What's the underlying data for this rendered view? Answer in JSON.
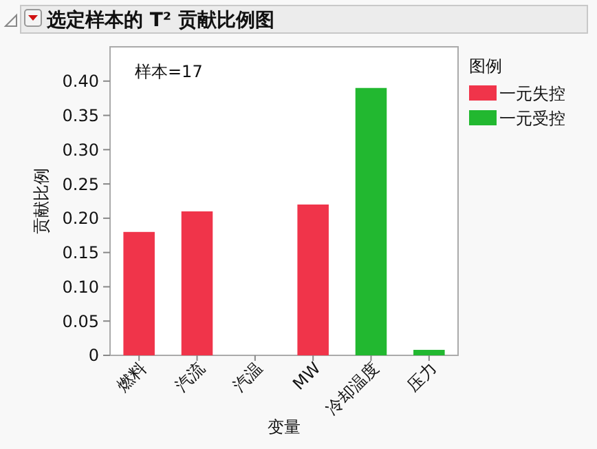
{
  "chart_data": {
    "type": "bar",
    "title": "选定样本的 T² 贡献比例图",
    "xlabel": "变量",
    "ylabel": "贡献比例",
    "legend_title": "图例",
    "annotations": [
      "样本=17"
    ],
    "categories": [
      "燃料",
      "汽流",
      "汽温",
      "MW",
      "冷却温度",
      "压力"
    ],
    "series": [
      {
        "name": "一元失控",
        "color": "#f0344a",
        "values": [
          0.18,
          0.21,
          null,
          0.22,
          null,
          null
        ]
      },
      {
        "name": "一元受控",
        "color": "#22b830",
        "values": [
          null,
          null,
          0,
          null,
          0.39,
          0.008
        ]
      }
    ],
    "ylim": [
      0,
      0.45
    ],
    "yticks": [
      0,
      {
        "value": 0.05,
        "label": "0.05"
      },
      {
        "value": 0.1,
        "label": "0.10"
      },
      {
        "value": 0.15,
        "label": "0.15"
      },
      {
        "value": 0.2,
        "label": "0.20"
      },
      {
        "value": 0.25,
        "label": "0.25"
      },
      {
        "value": 0.3,
        "label": "0.30"
      },
      {
        "value": 0.35,
        "label": "0.35"
      },
      {
        "value": 0.4,
        "label": "0.40"
      }
    ],
    "grid": false,
    "legend": "right"
  }
}
